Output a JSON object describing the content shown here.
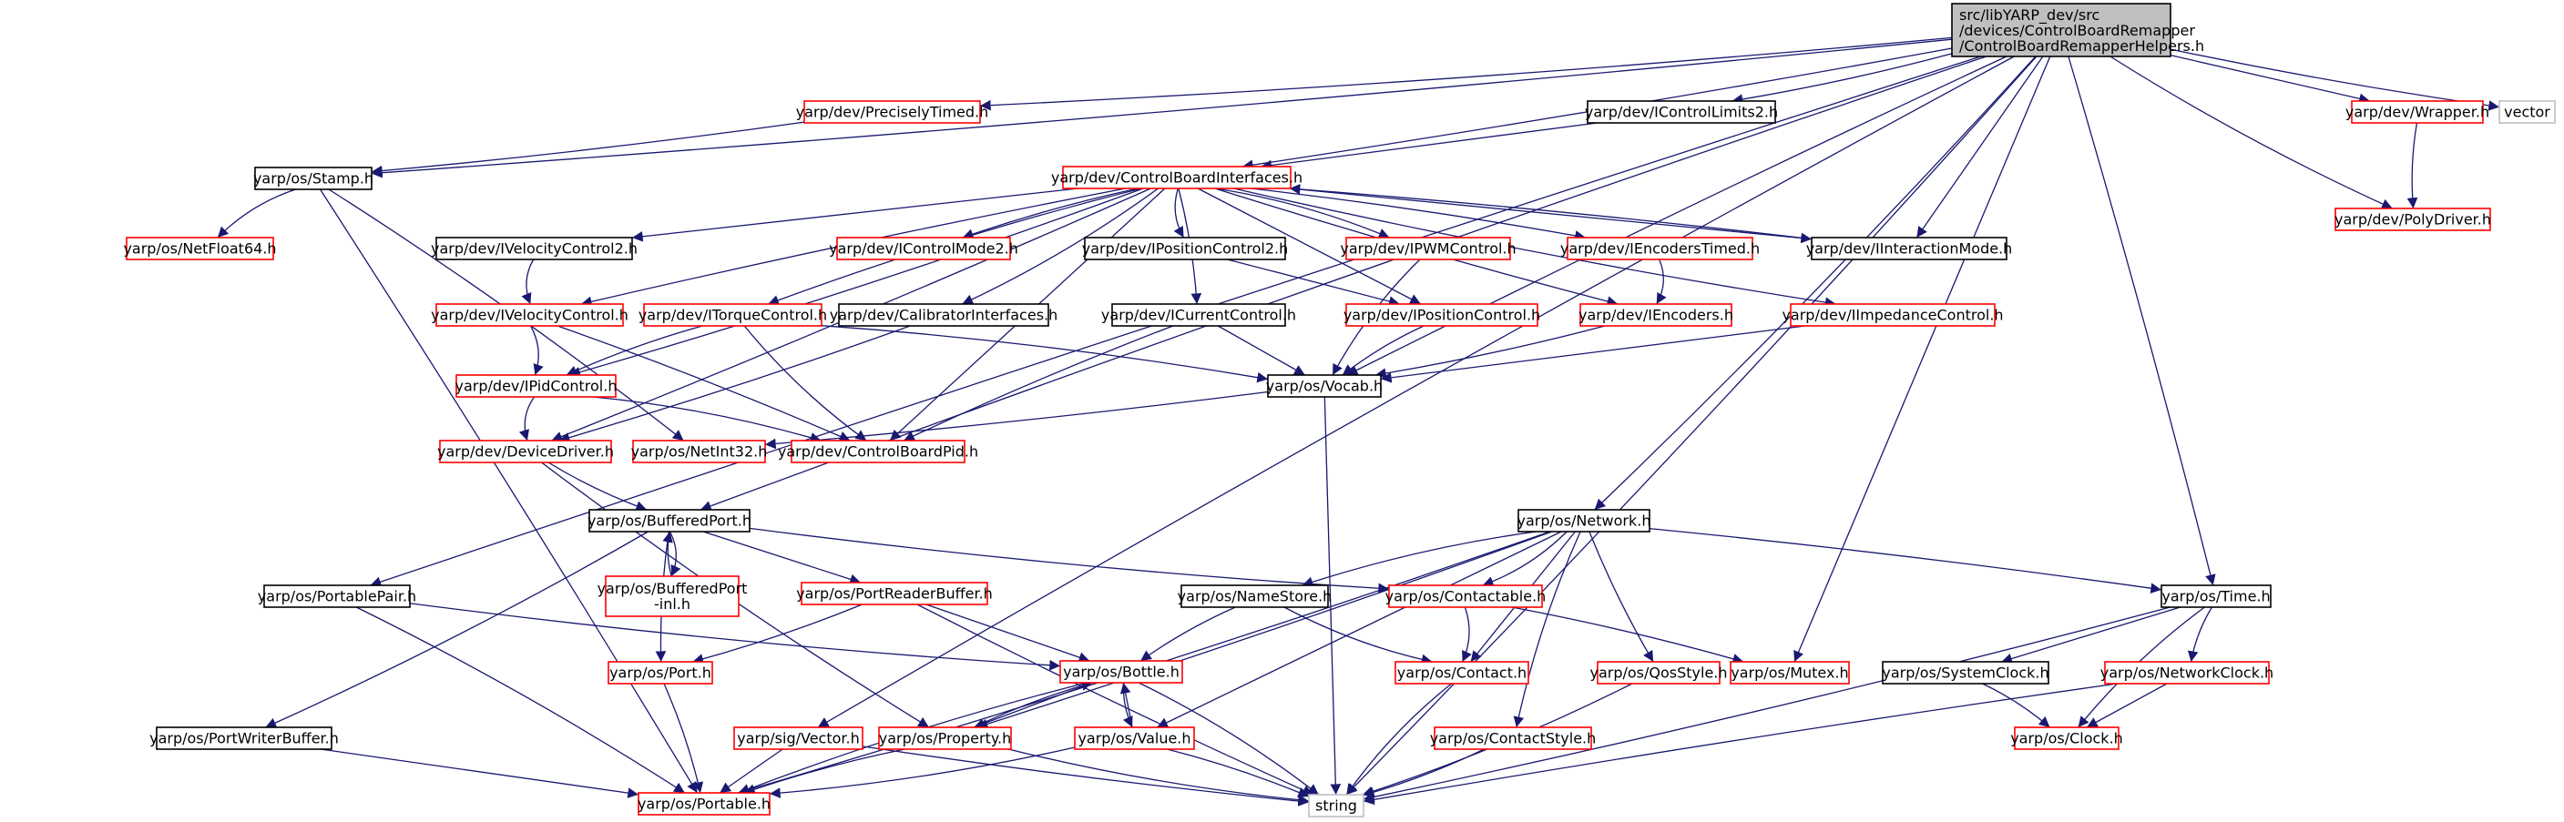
{
  "colors": {
    "edge": "#191970",
    "doc_border": "#000000",
    "undoc_border": "#ff0000",
    "external_border": "#bfbfbf",
    "root_fill": "#bfbfbf",
    "node_fill": "#ffffff",
    "text": "#000000"
  },
  "graph": {
    "root": {
      "lines": [
        "src/libYARP_dev/src",
        "/devices/ControlBoardRemapper",
        "/ControlBoardRemapperHelpers.h"
      ]
    },
    "nodes": [
      {
        "id": "precisely-timed",
        "label": "yarp/dev/PreciselyTimed.h",
        "kind": "red"
      },
      {
        "id": "icontrol-limits2",
        "label": "yarp/dev/IControlLimits2.h",
        "kind": "black"
      },
      {
        "id": "wrapper",
        "label": "yarp/dev/Wrapper.h",
        "kind": "red"
      },
      {
        "id": "vector-std",
        "label": "vector",
        "kind": "gray"
      },
      {
        "id": "poly-driver",
        "label": "yarp/dev/PolyDriver.h",
        "kind": "red"
      },
      {
        "id": "stamp",
        "label": "yarp/os/Stamp.h",
        "kind": "black"
      },
      {
        "id": "cb-interfaces",
        "label": "yarp/dev/ControlBoardInterfaces.h",
        "kind": "red"
      },
      {
        "id": "netfloat64",
        "label": "yarp/os/NetFloat64.h",
        "kind": "red"
      },
      {
        "id": "ivelocity-control2",
        "label": "yarp/dev/IVelocityControl2.h",
        "kind": "black"
      },
      {
        "id": "icontrol-mode2",
        "label": "yarp/dev/IControlMode2.h",
        "kind": "red"
      },
      {
        "id": "iposition-control2",
        "label": "yarp/dev/IPositionControl2.h",
        "kind": "black"
      },
      {
        "id": "ipwm-control",
        "label": "yarp/dev/IPWMControl.h",
        "kind": "red"
      },
      {
        "id": "iencoders-timed",
        "label": "yarp/dev/IEncodersTimed.h",
        "kind": "red"
      },
      {
        "id": "iinteraction-mode",
        "label": "yarp/dev/IInteractionMode.h",
        "kind": "black"
      },
      {
        "id": "ivelocity-control",
        "label": "yarp/dev/IVelocityControl.h",
        "kind": "red"
      },
      {
        "id": "itorque-control",
        "label": "yarp/dev/ITorqueControl.h",
        "kind": "red"
      },
      {
        "id": "calibrator-interfaces",
        "label": "yarp/dev/CalibratorInterfaces.h",
        "kind": "black"
      },
      {
        "id": "icurrent-control",
        "label": "yarp/dev/ICurrentControl.h",
        "kind": "black"
      },
      {
        "id": "iposition-control",
        "label": "yarp/dev/IPositionControl.h",
        "kind": "red"
      },
      {
        "id": "iencoders",
        "label": "yarp/dev/IEncoders.h",
        "kind": "red"
      },
      {
        "id": "iimpedance-control",
        "label": "yarp/dev/IImpedanceControl.h",
        "kind": "red"
      },
      {
        "id": "ipid-control",
        "label": "yarp/dev/IPidControl.h",
        "kind": "red"
      },
      {
        "id": "vocab",
        "label": "yarp/os/Vocab.h",
        "kind": "black"
      },
      {
        "id": "device-driver",
        "label": "yarp/dev/DeviceDriver.h",
        "kind": "red"
      },
      {
        "id": "netint32",
        "label": "yarp/os/NetInt32.h",
        "kind": "red"
      },
      {
        "id": "cb-pid",
        "label": "yarp/dev/ControlBoardPid.h",
        "kind": "red"
      },
      {
        "id": "buffered-port",
        "label": "yarp/os/BufferedPort.h",
        "kind": "black"
      },
      {
        "id": "network",
        "label": "yarp/os/Network.h",
        "kind": "black"
      },
      {
        "id": "buffered-port-inl",
        "label": "yarp/os/BufferedPort\n-inl.h",
        "kind": "red"
      },
      {
        "id": "port-reader-buffer",
        "label": "yarp/os/PortReaderBuffer.h",
        "kind": "red"
      },
      {
        "id": "name-store",
        "label": "yarp/os/NameStore.h",
        "kind": "black"
      },
      {
        "id": "contactable",
        "label": "yarp/os/Contactable.h",
        "kind": "red"
      },
      {
        "id": "time",
        "label": "yarp/os/Time.h",
        "kind": "black"
      },
      {
        "id": "portable-pair",
        "label": "yarp/os/PortablePair.h",
        "kind": "black"
      },
      {
        "id": "port",
        "label": "yarp/os/Port.h",
        "kind": "red"
      },
      {
        "id": "bottle",
        "label": "yarp/os/Bottle.h",
        "kind": "red"
      },
      {
        "id": "contact",
        "label": "yarp/os/Contact.h",
        "kind": "red"
      },
      {
        "id": "qos-style",
        "label": "yarp/os/QosStyle.h",
        "kind": "red"
      },
      {
        "id": "mutex",
        "label": "yarp/os/Mutex.h",
        "kind": "red"
      },
      {
        "id": "system-clock",
        "label": "yarp/os/SystemClock.h",
        "kind": "black"
      },
      {
        "id": "network-clock",
        "label": "yarp/os/NetworkClock.h",
        "kind": "red"
      },
      {
        "id": "port-writer-buffer",
        "label": "yarp/os/PortWriterBuffer.h",
        "kind": "black"
      },
      {
        "id": "sig-vector",
        "label": "yarp/sig/Vector.h",
        "kind": "red"
      },
      {
        "id": "property",
        "label": "yarp/os/Property.h",
        "kind": "red"
      },
      {
        "id": "value",
        "label": "yarp/os/Value.h",
        "kind": "red"
      },
      {
        "id": "contact-style",
        "label": "yarp/os/ContactStyle.h",
        "kind": "red"
      },
      {
        "id": "clock",
        "label": "yarp/os/Clock.h",
        "kind": "red"
      },
      {
        "id": "portable",
        "label": "yarp/os/Portable.h",
        "kind": "red"
      },
      {
        "id": "string-std",
        "label": "string",
        "kind": "gray"
      }
    ],
    "edges": [
      [
        "root",
        "precisely-timed"
      ],
      [
        "root",
        "icontrol-limits2"
      ],
      [
        "root",
        "wrapper"
      ],
      [
        "root",
        "vector-std"
      ],
      [
        "root",
        "poly-driver"
      ],
      [
        "root",
        "stamp"
      ],
      [
        "root",
        "cb-interfaces"
      ],
      [
        "root",
        "iinteraction-mode"
      ],
      [
        "root",
        "vocab"
      ],
      [
        "root",
        "buffered-port"
      ],
      [
        "root",
        "network"
      ],
      [
        "root",
        "time"
      ],
      [
        "root",
        "mutex"
      ],
      [
        "root",
        "portable-pair"
      ],
      [
        "root",
        "sig-vector"
      ],
      [
        "root",
        "string-std"
      ],
      [
        "precisely-timed",
        "stamp"
      ],
      [
        "icontrol-limits2",
        "cb-interfaces"
      ],
      [
        "wrapper",
        "poly-driver"
      ],
      [
        "stamp",
        "netfloat64"
      ],
      [
        "stamp",
        "netint32"
      ],
      [
        "stamp",
        "portable"
      ],
      [
        "cb-interfaces",
        "ivelocity-control2"
      ],
      [
        "cb-interfaces",
        "icontrol-mode2"
      ],
      [
        "cb-interfaces",
        "iposition-control2"
      ],
      [
        "cb-interfaces",
        "ipwm-control"
      ],
      [
        "cb-interfaces",
        "iencoders-timed"
      ],
      [
        "cb-interfaces",
        "iinteraction-mode"
      ],
      [
        "cb-interfaces",
        "ivelocity-control"
      ],
      [
        "cb-interfaces",
        "itorque-control"
      ],
      [
        "cb-interfaces",
        "calibrator-interfaces"
      ],
      [
        "cb-interfaces",
        "icurrent-control"
      ],
      [
        "cb-interfaces",
        "iposition-control"
      ],
      [
        "cb-interfaces",
        "iencoders"
      ],
      [
        "cb-interfaces",
        "iimpedance-control"
      ],
      [
        "cb-interfaces",
        "ipid-control"
      ],
      [
        "cb-interfaces",
        "device-driver"
      ],
      [
        "cb-interfaces",
        "cb-pid"
      ],
      [
        "iinteraction-mode",
        "cb-interfaces"
      ],
      [
        "ivelocity-control2",
        "ivelocity-control"
      ],
      [
        "ivelocity-control",
        "ipid-control"
      ],
      [
        "ivelocity-control",
        "cb-pid"
      ],
      [
        "iposition-control2",
        "iposition-control"
      ],
      [
        "iposition-control",
        "vocab"
      ],
      [
        "ipwm-control",
        "vocab"
      ],
      [
        "iencoders-timed",
        "iencoders"
      ],
      [
        "iencoders",
        "vocab"
      ],
      [
        "iimpedance-control",
        "vocab"
      ],
      [
        "itorque-control",
        "ipid-control"
      ],
      [
        "itorque-control",
        "cb-pid"
      ],
      [
        "itorque-control",
        "vocab"
      ],
      [
        "calibrator-interfaces",
        "device-driver"
      ],
      [
        "icurrent-control",
        "vocab"
      ],
      [
        "icurrent-control",
        "cb-pid"
      ],
      [
        "ipid-control",
        "device-driver"
      ],
      [
        "ipid-control",
        "cb-pid"
      ],
      [
        "vocab",
        "netint32"
      ],
      [
        "vocab",
        "string-std"
      ],
      [
        "device-driver",
        "buffered-port"
      ],
      [
        "device-driver",
        "property"
      ],
      [
        "buffered-port",
        "buffered-port-inl"
      ],
      [
        "buffered-port-inl",
        "buffered-port"
      ],
      [
        "buffered-port",
        "port-reader-buffer"
      ],
      [
        "buffered-port",
        "port"
      ],
      [
        "buffered-port",
        "contactable"
      ],
      [
        "buffered-port",
        "port-writer-buffer"
      ],
      [
        "port-reader-buffer",
        "port"
      ],
      [
        "port-reader-buffer",
        "bottle"
      ],
      [
        "port-reader-buffer",
        "string-std"
      ],
      [
        "network",
        "name-store"
      ],
      [
        "network",
        "contactable"
      ],
      [
        "network",
        "time"
      ],
      [
        "network",
        "contact"
      ],
      [
        "network",
        "qos-style"
      ],
      [
        "network",
        "contact-style"
      ],
      [
        "network",
        "portable"
      ],
      [
        "network",
        "property"
      ],
      [
        "network",
        "value"
      ],
      [
        "name-store",
        "bottle"
      ],
      [
        "name-store",
        "contact"
      ],
      [
        "contactable",
        "contact"
      ],
      [
        "contactable",
        "mutex"
      ],
      [
        "time",
        "system-clock"
      ],
      [
        "time",
        "network-clock"
      ],
      [
        "time",
        "clock"
      ],
      [
        "time",
        "string-std"
      ],
      [
        "system-clock",
        "clock"
      ],
      [
        "network-clock",
        "clock"
      ],
      [
        "network-clock",
        "string-std"
      ],
      [
        "portable-pair",
        "bottle"
      ],
      [
        "portable-pair",
        "portable"
      ],
      [
        "port",
        "portable"
      ],
      [
        "bottle",
        "property"
      ],
      [
        "bottle",
        "value"
      ],
      [
        "bottle",
        "portable"
      ],
      [
        "bottle",
        "string-std"
      ],
      [
        "property",
        "bottle"
      ],
      [
        "value",
        "bottle"
      ],
      [
        "property",
        "portable"
      ],
      [
        "property",
        "string-std"
      ],
      [
        "value",
        "portable"
      ],
      [
        "value",
        "string-std"
      ],
      [
        "sig-vector",
        "portable"
      ],
      [
        "sig-vector",
        "string-std"
      ],
      [
        "contact",
        "string-std"
      ],
      [
        "qos-style",
        "string-std"
      ],
      [
        "contact-style",
        "string-std"
      ],
      [
        "port-writer-buffer",
        "portable"
      ]
    ]
  }
}
